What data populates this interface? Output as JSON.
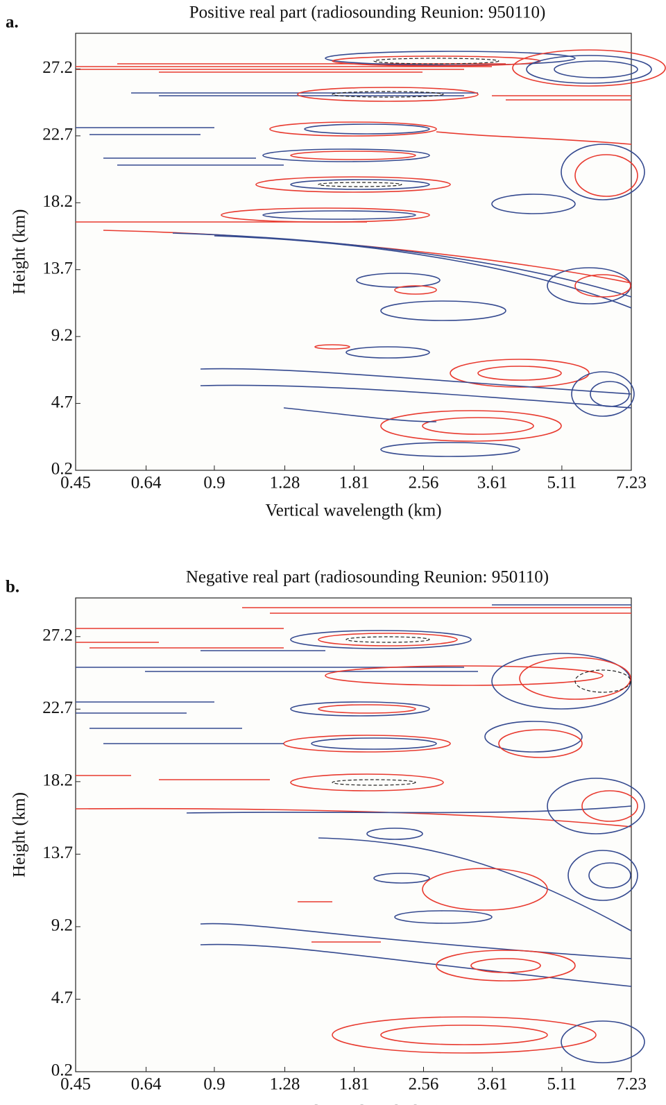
{
  "chart_data": [
    {
      "type": "contour",
      "panel_label": "a.",
      "title": "Positive real part (radiosounding Reunion: 950110)",
      "x_label": "Vertical wavelength (km)",
      "y_label": "Height (km)",
      "x_log": true,
      "xlim": [
        0.45,
        7.23
      ],
      "xticks": [
        0.45,
        0.64,
        0.9,
        1.28,
        1.81,
        2.56,
        3.61,
        5.11,
        7.23
      ],
      "ylim": [
        0.2,
        29.6
      ],
      "yticks": [
        0.2,
        4.7,
        9.2,
        13.7,
        18.2,
        22.7,
        27.2
      ]
    },
    {
      "type": "contour",
      "panel_label": "b.",
      "title": "Negative real part (radiosounding Reunion: 950110)",
      "x_label": "Vertical wavelength (km)",
      "y_label": "Height (km)",
      "x_log": true,
      "xlim": [
        0.45,
        7.23
      ],
      "xticks": [
        0.45,
        0.64,
        0.9,
        1.28,
        1.81,
        2.56,
        3.61,
        5.11,
        7.23
      ],
      "ylim": [
        0.2,
        29.6
      ],
      "yticks": [
        0.2,
        4.7,
        9.2,
        13.7,
        18.2,
        22.7,
        27.2
      ]
    }
  ]
}
